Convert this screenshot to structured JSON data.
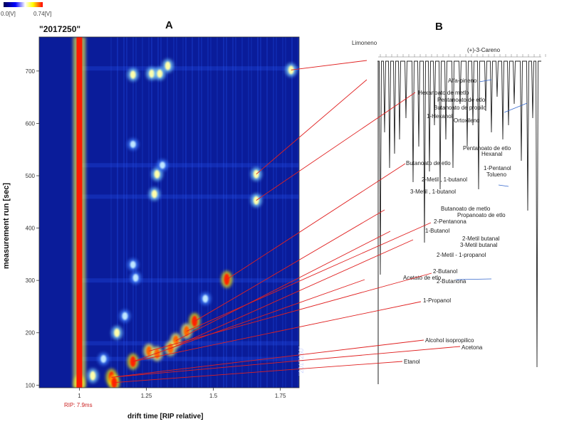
{
  "colorbar": {
    "min_label": "0.0[V]",
    "max_label": "0.74[V]",
    "colors": [
      "#000050",
      "#0000ff",
      "#ffffff",
      "#ffff00",
      "#ff0000"
    ]
  },
  "panel_labels": {
    "a": "A",
    "b": "B"
  },
  "chart_data": [
    {
      "type": "heatmap",
      "title": "\"2017250\"",
      "watermark": "\"2017250\"",
      "xlabel": "drift time [RIP relative]",
      "ylabel": "measurement run [sec]",
      "rip_label": "RIP: 7.9ms",
      "xlim": [
        0.85,
        1.82
      ],
      "ylim": [
        95,
        765
      ],
      "xticks": [
        1.0,
        1.25,
        1.5,
        1.75
      ],
      "yticks": [
        100,
        200,
        300,
        400,
        500,
        600,
        700
      ],
      "rip_drift": 1.0,
      "spots": [
        {
          "x": 1.2,
          "y": 693,
          "level": 0.55
        },
        {
          "x": 1.27,
          "y": 695,
          "level": 0.55
        },
        {
          "x": 1.3,
          "y": 695,
          "level": 0.55
        },
        {
          "x": 1.33,
          "y": 710,
          "level": 0.6
        },
        {
          "x": 1.79,
          "y": 702,
          "level": 0.6
        },
        {
          "x": 1.29,
          "y": 503,
          "level": 0.6
        },
        {
          "x": 1.28,
          "y": 465,
          "level": 0.55
        },
        {
          "x": 1.66,
          "y": 503,
          "level": 0.6
        },
        {
          "x": 1.66,
          "y": 453,
          "level": 0.6
        },
        {
          "x": 1.55,
          "y": 302,
          "level": 1.0
        },
        {
          "x": 1.43,
          "y": 222,
          "level": 0.95
        },
        {
          "x": 1.4,
          "y": 203,
          "level": 0.85
        },
        {
          "x": 1.36,
          "y": 185,
          "level": 0.8
        },
        {
          "x": 1.34,
          "y": 170,
          "level": 0.8
        },
        {
          "x": 1.26,
          "y": 165,
          "level": 0.75
        },
        {
          "x": 1.29,
          "y": 160,
          "level": 0.75
        },
        {
          "x": 1.2,
          "y": 145,
          "level": 0.9
        },
        {
          "x": 1.12,
          "y": 115,
          "level": 1.0
        },
        {
          "x": 1.13,
          "y": 105,
          "level": 0.9
        },
        {
          "x": 1.2,
          "y": 330,
          "level": 0.45
        },
        {
          "x": 1.21,
          "y": 305,
          "level": 0.5
        },
        {
          "x": 1.17,
          "y": 232,
          "level": 0.5
        },
        {
          "x": 1.14,
          "y": 200,
          "level": 0.6
        },
        {
          "x": 1.05,
          "y": 118,
          "level": 0.7
        },
        {
          "x": 1.09,
          "y": 150,
          "level": 0.5
        },
        {
          "x": 1.47,
          "y": 265,
          "level": 0.5
        },
        {
          "x": 1.2,
          "y": 560,
          "level": 0.4
        },
        {
          "x": 1.31,
          "y": 520,
          "level": 0.4
        },
        {
          "x": 1.0,
          "y": 103,
          "level": 1.0
        }
      ]
    },
    {
      "type": "line",
      "y_axis_label": "Limoneno",
      "compounds": [
        "(+)-3-Careno",
        "Alfa-pineno",
        "Hexanoato de metlo",
        "Pentanoato de etlo",
        "Butanoato de propilo",
        "1-Hexanol",
        "Ortoxileno",
        "Pentanoato de etlo",
        "Hexanal",
        "1-Pentanol",
        "Tolueno",
        "Butanoato de etlo",
        "2-Metil , 1-butanol",
        "3-Metil , 1-butanol",
        "Butanoato de metlo",
        "Propanoato de etlo",
        "2-Pentanona",
        "1-Butanol",
        "2-Metil butanal",
        "3-Metil butanal",
        "2-Metil - 1-propanol",
        "2-Butanol",
        "Acetato de etlo",
        "2-Butanona",
        "1-Propanol",
        "Alcohol isopropilico",
        "Acetona",
        "Etanol"
      ]
    }
  ]
}
